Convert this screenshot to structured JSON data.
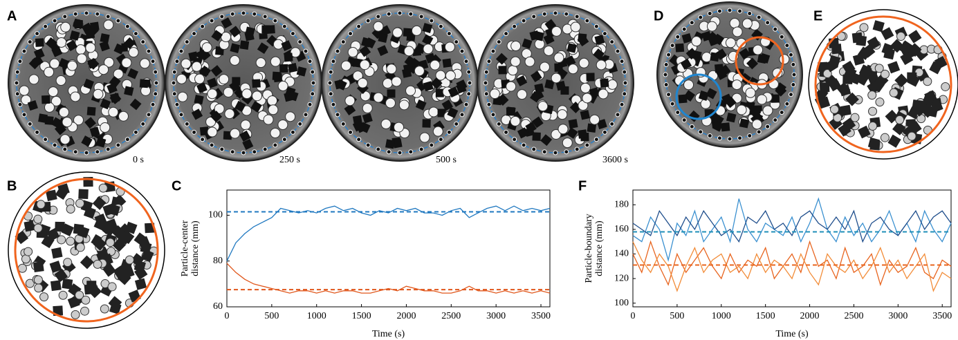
{
  "panel_labels": [
    "A",
    "B",
    "C",
    "D",
    "E",
    "F"
  ],
  "time_labels": [
    "0 s",
    "250 s",
    "500 s",
    "3600 s"
  ],
  "chart_data": [
    {
      "type": "line",
      "xlabel": "Time (s)",
      "ylabel": [
        "Particle-center",
        "distance (mm)"
      ],
      "x": [
        0,
        100,
        200,
        300,
        400,
        500,
        600,
        700,
        800,
        900,
        1000,
        1100,
        1200,
        1300,
        1400,
        1500,
        1600,
        1700,
        1800,
        1900,
        2000,
        2100,
        2200,
        2300,
        2400,
        2500,
        2600,
        2700,
        2800,
        2900,
        3000,
        3100,
        3200,
        3300,
        3400,
        3500,
        3600
      ],
      "xlim": [
        0,
        3600
      ],
      "xticks": [
        0,
        500,
        1000,
        1500,
        2000,
        2500,
        3000,
        3500
      ],
      "ylim": [
        60,
        111
      ],
      "yticks": [
        60,
        80,
        100
      ],
      "series": [
        {
          "color": "#1f78c0",
          "values": [
            80,
            88,
            92,
            95,
            97,
            99,
            103,
            102,
            101,
            102,
            101,
            103,
            104,
            102,
            103,
            101,
            100,
            102,
            101,
            103,
            102,
            103,
            101,
            101,
            100,
            102,
            103,
            99,
            101,
            103,
            104,
            102,
            104,
            102,
            103,
            102,
            103
          ]
        },
        {
          "color": "#e0561a",
          "values": [
            79,
            75,
            72,
            70,
            69,
            68,
            67,
            66,
            67,
            67,
            66,
            67,
            66,
            67,
            67,
            66,
            66,
            67,
            68,
            67,
            69,
            68,
            67,
            67,
            66,
            66,
            67,
            69,
            67,
            67,
            66,
            67,
            66,
            67,
            66,
            67,
            66
          ]
        }
      ],
      "reference_lines": [
        {
          "value": 101.5,
          "color": "#1f78c0"
        },
        {
          "value": 67.5,
          "color": "#e0561a"
        }
      ]
    },
    {
      "type": "line",
      "xlabel": "Time (s)",
      "ylabel": [
        "Particle-boundary",
        "distance (mm)"
      ],
      "x": [
        0,
        100,
        200,
        300,
        400,
        500,
        600,
        700,
        800,
        900,
        1000,
        1100,
        1200,
        1300,
        1400,
        1500,
        1600,
        1700,
        1800,
        1900,
        2000,
        2100,
        2200,
        2300,
        2400,
        2500,
        2600,
        2700,
        2800,
        2900,
        3000,
        3100,
        3200,
        3300,
        3400,
        3500,
        3600
      ],
      "xlim": [
        0,
        3600
      ],
      "xticks": [
        0,
        500,
        1000,
        1500,
        2000,
        2500,
        3000,
        3500
      ],
      "ylim": [
        97,
        192
      ],
      "yticks": [
        100,
        120,
        140,
        160,
        180
      ],
      "series": [
        {
          "color": "#3a90d0",
          "values": [
            155,
            150,
            170,
            160,
            135,
            165,
            155,
            175,
            150,
            160,
            170,
            150,
            185,
            160,
            150,
            165,
            160,
            155,
            170,
            150,
            165,
            185,
            160,
            150,
            170,
            155,
            165,
            150,
            160,
            175,
            155,
            165,
            150,
            175,
            160,
            150,
            165
          ]
        },
        {
          "color": "#1f4e8c",
          "values": [
            165,
            160,
            155,
            175,
            165,
            155,
            170,
            160,
            175,
            165,
            155,
            160,
            150,
            170,
            165,
            175,
            160,
            165,
            155,
            170,
            175,
            165,
            160,
            170,
            160,
            175,
            150,
            165,
            170,
            160,
            155,
            165,
            175,
            160,
            170,
            175,
            165
          ]
        },
        {
          "color": "#e8641e",
          "values": [
            140,
            125,
            150,
            130,
            115,
            140,
            125,
            135,
            145,
            130,
            120,
            140,
            125,
            135,
            130,
            145,
            120,
            130,
            140,
            125,
            150,
            130,
            135,
            120,
            145,
            125,
            130,
            140,
            115,
            135,
            125,
            130,
            145,
            125,
            120,
            135,
            130
          ]
        },
        {
          "color": "#f28c38",
          "values": [
            150,
            135,
            125,
            140,
            130,
            110,
            130,
            145,
            125,
            135,
            140,
            125,
            130,
            120,
            140,
            125,
            135,
            130,
            120,
            140,
            125,
            115,
            140,
            130,
            125,
            135,
            120,
            130,
            145,
            125,
            135,
            120,
            130,
            140,
            110,
            125,
            120
          ]
        }
      ],
      "reference_lines": [
        {
          "value": 158,
          "color": "#1f8fb8"
        },
        {
          "value": 131,
          "color": "#e8641e"
        }
      ]
    }
  ]
}
